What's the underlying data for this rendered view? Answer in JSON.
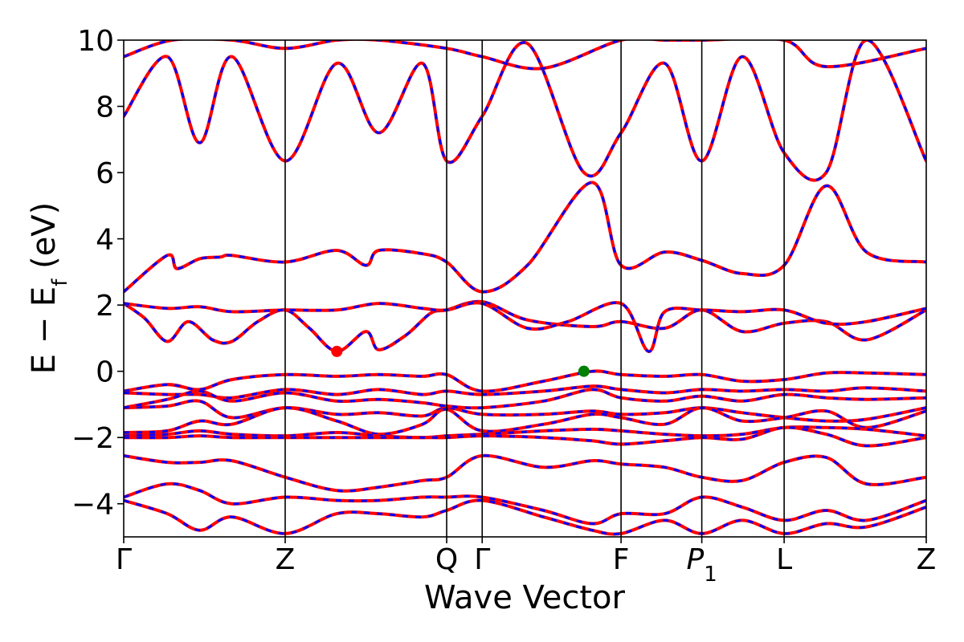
{
  "chart_data": {
    "type": "line",
    "title": "",
    "xlabel": "Wave Vector",
    "ylabel": "E − E_f (eV)",
    "ylabel_main": "E − E",
    "ylabel_sub": "f",
    "ylabel_unit": " (eV)",
    "ylim": [
      -5,
      10
    ],
    "y_ticks": [
      -4,
      -2,
      0,
      2,
      4,
      6,
      8,
      10
    ],
    "y_tick_labels": [
      "−4",
      "−2",
      "0",
      "2",
      "4",
      "6",
      "8",
      "10"
    ],
    "k_path": [
      {
        "k": 0,
        "label": "Γ"
      },
      {
        "k": 1,
        "label": "Z"
      },
      {
        "k": 2,
        "label": "Q"
      },
      {
        "k": 2.22,
        "label": "Γ"
      },
      {
        "k": 3.08,
        "label": "F"
      },
      {
        "k": 3.58,
        "label": "P",
        "sub": "1"
      },
      {
        "k": 4.09,
        "label": "L"
      },
      {
        "k": 4.97,
        "label": "Z"
      }
    ],
    "xlim": [
      0,
      4.97
    ],
    "grid": false,
    "series_colors": {
      "solid": "#ff0000",
      "dashed": "#0000ff"
    },
    "bands": [
      {
        "k": [
          0,
          0.27,
          0.47,
          0.67,
          1.0,
          1.32,
          1.58,
          1.85,
          2.0,
          2.22,
          2.6,
          2.9,
          3.08,
          3.35,
          3.58,
          3.83,
          4.09,
          4.35,
          4.6,
          4.97
        ],
        "E": [
          -1.1,
          -1.05,
          -0.9,
          -1.4,
          -1.1,
          -1.3,
          -1.25,
          -1.35,
          -1.1,
          -1.3,
          -1.3,
          -1.2,
          -1.3,
          -1.25,
          -1.1,
          -1.25,
          -1.4,
          -1.5,
          -1.45,
          -1.1
        ]
      },
      {
        "k": [
          0,
          0.27,
          0.47,
          0.67,
          1.0,
          1.32,
          1.58,
          1.85,
          2.0,
          2.22,
          2.6,
          2.9,
          3.08,
          3.35,
          3.58,
          3.83,
          4.09,
          4.35,
          4.6,
          4.97
        ],
        "E": [
          -1.85,
          -1.8,
          -1.5,
          -1.6,
          -1.1,
          -1.5,
          -1.9,
          -1.6,
          -1.15,
          -1.8,
          -1.6,
          -1.3,
          -1.4,
          -1.6,
          -1.1,
          -1.5,
          -1.4,
          -1.2,
          -1.7,
          -1.2
        ]
      },
      {
        "k": [
          0,
          0.27,
          0.47,
          0.67,
          1.0,
          1.32,
          1.58,
          1.85,
          2.0,
          2.22,
          2.6,
          2.9,
          3.08,
          3.35,
          3.58,
          3.83,
          4.09,
          4.35,
          4.6,
          4.97
        ],
        "E": [
          -1.95,
          -1.9,
          -1.8,
          -1.9,
          -1.95,
          -1.85,
          -1.95,
          -2.0,
          -1.95,
          -1.9,
          -1.8,
          -1.75,
          -1.8,
          -1.9,
          -1.95,
          -1.9,
          -1.7,
          -1.7,
          -1.75,
          -1.95
        ]
      },
      {
        "k": [
          0,
          0.27,
          0.47,
          0.67,
          1.0,
          1.32,
          1.58,
          1.85,
          2.0,
          2.22,
          2.6,
          2.9,
          3.08,
          3.35,
          3.58,
          3.83,
          4.09,
          4.35,
          4.6,
          4.97
        ],
        "E": [
          -2.0,
          -2.0,
          -1.95,
          -2.0,
          -2.0,
          -2.0,
          -2.0,
          -2.0,
          -2.0,
          -1.95,
          -2.0,
          -2.1,
          -2.2,
          -2.1,
          -2.0,
          -2.05,
          -1.7,
          -1.9,
          -2.25,
          -2.0
        ]
      },
      {
        "k": [
          0,
          0.27,
          0.47,
          0.67,
          1.0,
          1.32,
          1.58,
          1.85,
          2.0,
          2.22,
          2.6,
          2.9,
          3.08,
          3.35,
          3.58,
          3.83,
          4.09,
          4.35,
          4.6,
          4.97
        ],
        "E": [
          -2.55,
          -2.75,
          -2.75,
          -2.7,
          -3.2,
          -3.6,
          -3.5,
          -3.3,
          -3.2,
          -2.55,
          -2.9,
          -2.7,
          -2.8,
          -2.9,
          -3.2,
          -3.3,
          -2.75,
          -2.6,
          -3.4,
          -3.2
        ]
      },
      {
        "k": [
          0,
          0.27,
          0.47,
          0.67,
          1.0,
          1.32,
          1.58,
          1.85,
          2.0,
          2.22,
          2.6,
          2.9,
          3.08,
          3.35,
          3.58,
          3.83,
          4.09,
          4.35,
          4.6,
          4.97
        ],
        "E": [
          -3.8,
          -3.4,
          -3.6,
          -4.0,
          -3.8,
          -3.9,
          -3.9,
          -3.8,
          -3.8,
          -3.8,
          -4.2,
          -4.6,
          -4.3,
          -4.3,
          -3.8,
          -4.1,
          -4.5,
          -4.2,
          -4.5,
          -3.9
        ]
      },
      {
        "k": [
          0,
          0.27,
          0.47,
          0.67,
          1.0,
          1.32,
          1.58,
          1.85,
          2.0,
          2.22,
          2.6,
          2.9,
          3.08,
          3.35,
          3.58,
          3.83,
          4.09,
          4.35,
          4.6,
          4.97
        ],
        "E": [
          -3.9,
          -4.3,
          -4.8,
          -4.4,
          -4.9,
          -4.3,
          -4.3,
          -4.4,
          -4.2,
          -3.9,
          -4.4,
          -4.8,
          -4.9,
          -4.5,
          -4.9,
          -4.5,
          -4.9,
          -4.6,
          -4.7,
          -4.1
        ]
      },
      {
        "k": [
          0,
          0.27,
          0.47,
          0.67,
          1.0,
          1.32,
          1.58,
          1.85,
          2.0,
          2.22,
          2.6,
          2.9,
          3.08,
          3.35,
          3.58,
          3.83,
          4.09,
          4.35,
          4.6,
          4.97
        ],
        "E": [
          -0.6,
          -0.4,
          -0.55,
          -0.25,
          -0.1,
          -0.15,
          -0.1,
          -0.15,
          -0.1,
          -0.6,
          -0.3,
          0.0,
          -0.1,
          -0.15,
          -0.1,
          -0.3,
          -0.25,
          -0.05,
          -0.05,
          -0.1
        ]
      },
      {
        "k": [
          0,
          0.27,
          0.47,
          0.67,
          1.0,
          1.32,
          1.58,
          1.85,
          2.0,
          2.22,
          2.6,
          2.9,
          3.08,
          3.35,
          3.58,
          3.83,
          4.09,
          4.35,
          4.6,
          4.97
        ],
        "E": [
          -0.65,
          -0.7,
          -0.7,
          -0.8,
          -0.55,
          -0.7,
          -0.55,
          -0.7,
          -0.6,
          -0.7,
          -0.6,
          -0.45,
          -0.55,
          -0.65,
          -0.55,
          -0.6,
          -0.55,
          -0.6,
          -0.5,
          -0.6
        ]
      },
      {
        "k": [
          0,
          0.27,
          0.47,
          0.67,
          1.0,
          1.32,
          1.58,
          1.85,
          2.0,
          2.22,
          2.6,
          2.9,
          3.08,
          3.35,
          3.58,
          3.83,
          4.09,
          4.35,
          4.6,
          4.97
        ],
        "E": [
          -1.1,
          -0.85,
          -0.6,
          -0.9,
          -0.65,
          -0.9,
          -0.85,
          -0.95,
          -1.05,
          -1.1,
          -0.9,
          -0.55,
          -0.8,
          -0.9,
          -0.75,
          -0.9,
          -0.7,
          -0.8,
          -0.85,
          -0.8
        ]
      },
      {
        "k": [
          0,
          0.13,
          0.27,
          0.4,
          0.55,
          0.67,
          0.83,
          1.0,
          1.15,
          1.32,
          1.5,
          1.58,
          1.75,
          1.9,
          2.0,
          2.22,
          2.5,
          2.9,
          3.08,
          3.35,
          3.58,
          3.83,
          4.09,
          4.35,
          4.6,
          4.97
        ],
        "E": [
          2.05,
          1.6,
          0.9,
          1.5,
          0.95,
          0.9,
          1.5,
          1.85,
          1.3,
          0.6,
          1.2,
          0.65,
          1.1,
          1.75,
          1.85,
          2.1,
          1.55,
          1.35,
          1.5,
          1.3,
          1.85,
          1.2,
          1.45,
          1.5,
          0.95,
          1.85
        ]
      },
      {
        "k": [
          0,
          0.27,
          0.47,
          0.67,
          1.0,
          1.32,
          1.58,
          1.85,
          2.0,
          2.22,
          2.5,
          2.75,
          3.08,
          3.25,
          3.35,
          3.58,
          3.83,
          4.09,
          4.35,
          4.6,
          4.97
        ],
        "E": [
          2.05,
          1.9,
          1.95,
          1.8,
          1.85,
          1.85,
          2.05,
          1.9,
          1.85,
          2.05,
          1.3,
          1.5,
          2.05,
          0.6,
          1.8,
          1.85,
          1.8,
          1.85,
          1.45,
          1.5,
          1.9
        ]
      },
      {
        "k": [
          0,
          0.27,
          0.33,
          0.47,
          0.6,
          0.67,
          1.0,
          1.32,
          1.5,
          1.58,
          1.85,
          2.0,
          2.22,
          2.5,
          2.9,
          3.08,
          3.35,
          3.58,
          3.83,
          4.09,
          4.35,
          4.6,
          4.97
        ],
        "E": [
          2.4,
          3.5,
          3.1,
          3.4,
          3.45,
          3.5,
          3.3,
          3.65,
          3.2,
          3.65,
          3.55,
          3.3,
          2.4,
          3.2,
          5.7,
          3.2,
          3.6,
          3.35,
          2.95,
          3.2,
          5.6,
          3.6,
          3.3
        ]
      },
      {
        "k": [
          0,
          0.27,
          0.47,
          0.67,
          1.0,
          1.32,
          1.58,
          1.85,
          2.0,
          2.22,
          2.5,
          2.85,
          3.08,
          3.35,
          3.58,
          3.83,
          4.09,
          4.35,
          4.6,
          4.97
        ],
        "E": [
          7.7,
          9.5,
          6.9,
          9.5,
          6.35,
          9.3,
          7.2,
          9.3,
          6.35,
          7.7,
          9.9,
          6.0,
          7.2,
          9.3,
          6.35,
          9.5,
          6.6,
          6.0,
          10.0,
          6.35
        ]
      },
      {
        "k": [
          0,
          0.3,
          0.67,
          1.0,
          1.32,
          1.58,
          2.0,
          2.22,
          2.6,
          3.08,
          3.35,
          3.58,
          4.09,
          4.35,
          4.97
        ],
        "E": [
          9.5,
          10.0,
          10.0,
          9.75,
          10.0,
          10.0,
          9.75,
          9.5,
          9.15,
          10.0,
          10.0,
          10.0,
          10.0,
          9.2,
          9.75
        ]
      }
    ],
    "markers": [
      {
        "k": 1.32,
        "E": 0.6,
        "color": "#ff0000"
      },
      {
        "k": 2.85,
        "E": 0.0,
        "color": "#008000"
      }
    ]
  }
}
